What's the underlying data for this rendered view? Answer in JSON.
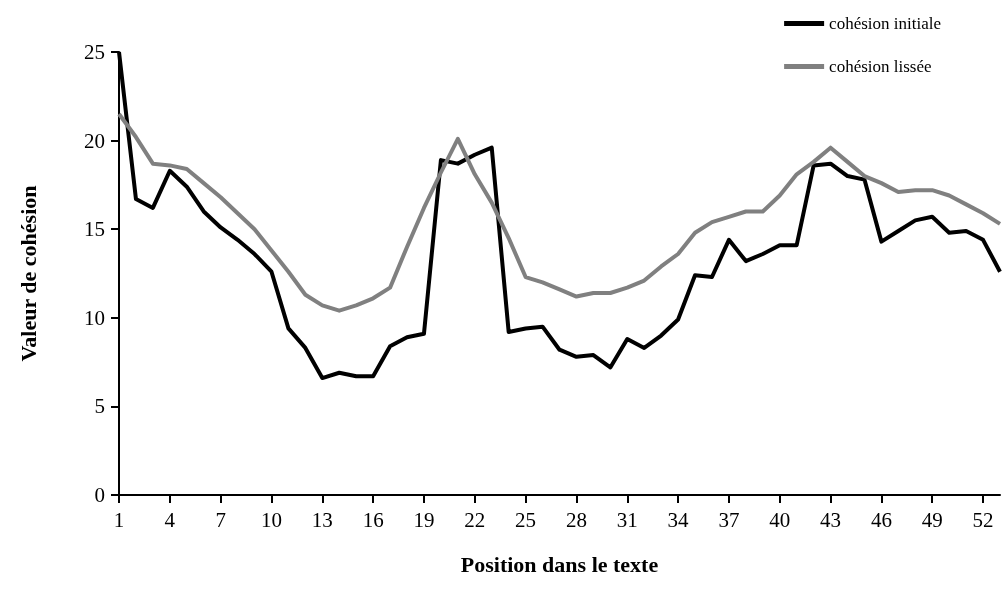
{
  "chart_data": {
    "type": "line",
    "xlabel": "Position dans le texte",
    "ylabel": "Valeur de cohésion",
    "categories": [
      "1",
      null,
      null,
      "4",
      null,
      null,
      "7",
      null,
      null,
      "10",
      null,
      null,
      "13",
      null,
      null,
      "16",
      null,
      null,
      "19",
      null,
      null,
      "22",
      null,
      null,
      "25",
      null,
      null,
      "28",
      null,
      null,
      "31",
      null,
      null,
      "34",
      null,
      null,
      "37",
      null,
      null,
      "40",
      null,
      null,
      "43",
      null,
      null,
      "46",
      null,
      null,
      "49",
      null,
      null,
      "52",
      null
    ],
    "series": [
      {
        "name": "cohésion initiale",
        "color": "#000000",
        "values": [
          25,
          16.7,
          16.2,
          18.3,
          17.4,
          16.0,
          15.1,
          14.4,
          13.6,
          12.6,
          9.4,
          8.3,
          6.6,
          6.9,
          6.7,
          6.7,
          8.4,
          8.9,
          9.1,
          18.9,
          18.7,
          19.2,
          19.6,
          9.2,
          9.4,
          9.5,
          8.2,
          7.8,
          7.9,
          7.2,
          8.8,
          8.3,
          9.0,
          9.9,
          12.4,
          12.3,
          14.4,
          13.2,
          13.6,
          14.1,
          14.1,
          18.6,
          18.7,
          18.0,
          17.8,
          14.3,
          14.9,
          15.5,
          15.7,
          14.8,
          14.9,
          14.4,
          12.6
        ]
      },
      {
        "name": "cohésion lissée",
        "color": "#808080",
        "values": [
          21.5,
          20.2,
          18.7,
          18.6,
          18.4,
          17.6,
          16.8,
          15.9,
          15.0,
          13.8,
          12.6,
          11.3,
          10.7,
          10.4,
          10.7,
          11.1,
          11.7,
          14.0,
          16.2,
          18.2,
          20.1,
          18.1,
          16.5,
          14.5,
          12.3,
          12.0,
          11.6,
          11.2,
          11.4,
          11.4,
          11.7,
          12.1,
          12.9,
          13.6,
          14.8,
          15.4,
          15.7,
          16.0,
          16.0,
          16.9,
          18.1,
          18.8,
          19.6,
          18.8,
          18.0,
          17.6,
          17.1,
          17.2,
          17.2,
          16.9,
          16.4,
          15.9,
          15.3
        ]
      }
    ],
    "ylim": [
      0,
      25
    ],
    "yticks": [
      0,
      5,
      10,
      15,
      20,
      25
    ],
    "grid": false,
    "legend": "top right",
    "marker": "none",
    "line_style": "solid"
  }
}
